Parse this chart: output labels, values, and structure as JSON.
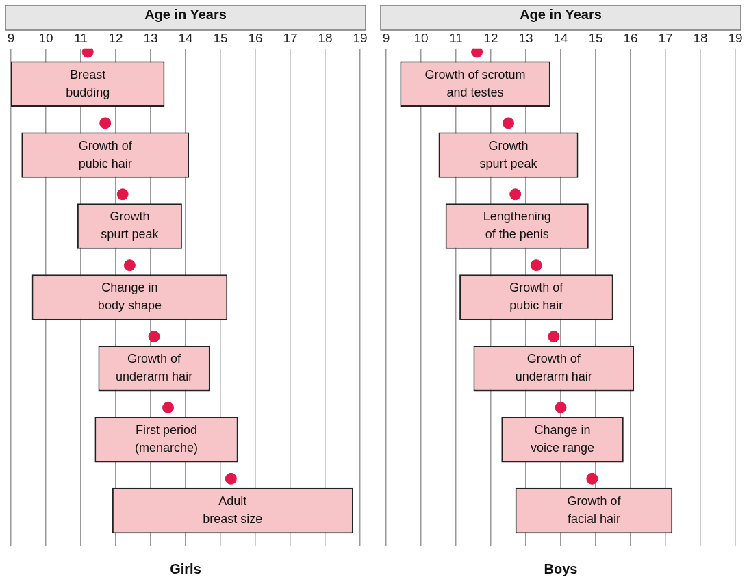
{
  "chart_data": [
    {
      "type": "bar",
      "orientation": "horizontal",
      "title": "Girls",
      "xlabel": "Age in Years",
      "xlim": [
        9,
        19
      ],
      "xticks": [
        9,
        10,
        11,
        12,
        13,
        14,
        15,
        16,
        17,
        18,
        19
      ],
      "grid": "x",
      "tick_labels": "x",
      "marker": "circle",
      "categories": [
        "Breast budding",
        "Growth of pubic hair",
        "Growth spurt peak",
        "Change in body shape",
        "Growth of underarm hair",
        "First period (menarche)",
        "Adult breast size"
      ],
      "series": [
        {
          "color": "#f7c5c8",
          "base": [
            9.0,
            9.3,
            10.9,
            9.6,
            11.5,
            11.4,
            11.9
          ],
          "values": [
            4.4,
            4.8,
            3.0,
            5.6,
            3.2,
            4.1,
            6.9
          ]
        },
        {
          "type": "scatter",
          "color": "#e3174a",
          "values": [
            11.2,
            11.7,
            12.2,
            12.4,
            13.1,
            13.5,
            15.3
          ]
        }
      ]
    },
    {
      "type": "bar",
      "orientation": "horizontal",
      "title": "Boys",
      "xlabel": "Age in Years",
      "xlim": [
        9,
        19
      ],
      "xticks": [
        9,
        10,
        11,
        12,
        13,
        14,
        15,
        16,
        17,
        18,
        19
      ],
      "grid": "x",
      "tick_labels": "x",
      "marker": "circle",
      "categories": [
        "Growth of scrotum and testes",
        "Growth spurt peak",
        "Lengthening of the penis",
        "Growth of pubic hair",
        "Growth of underarm hair",
        "Change in voice range",
        "Growth of facial hair"
      ],
      "series": [
        {
          "color": "#f7c5c8",
          "base": [
            9.4,
            10.5,
            10.7,
            11.1,
            11.5,
            12.3,
            12.7
          ],
          "values": [
            4.3,
            4.0,
            4.1,
            4.4,
            4.6,
            3.5,
            4.5
          ]
        },
        {
          "type": "scatter",
          "color": "#e3174a",
          "values": [
            11.6,
            12.5,
            12.7,
            13.3,
            13.8,
            14.0,
            14.9
          ]
        }
      ]
    }
  ]
}
